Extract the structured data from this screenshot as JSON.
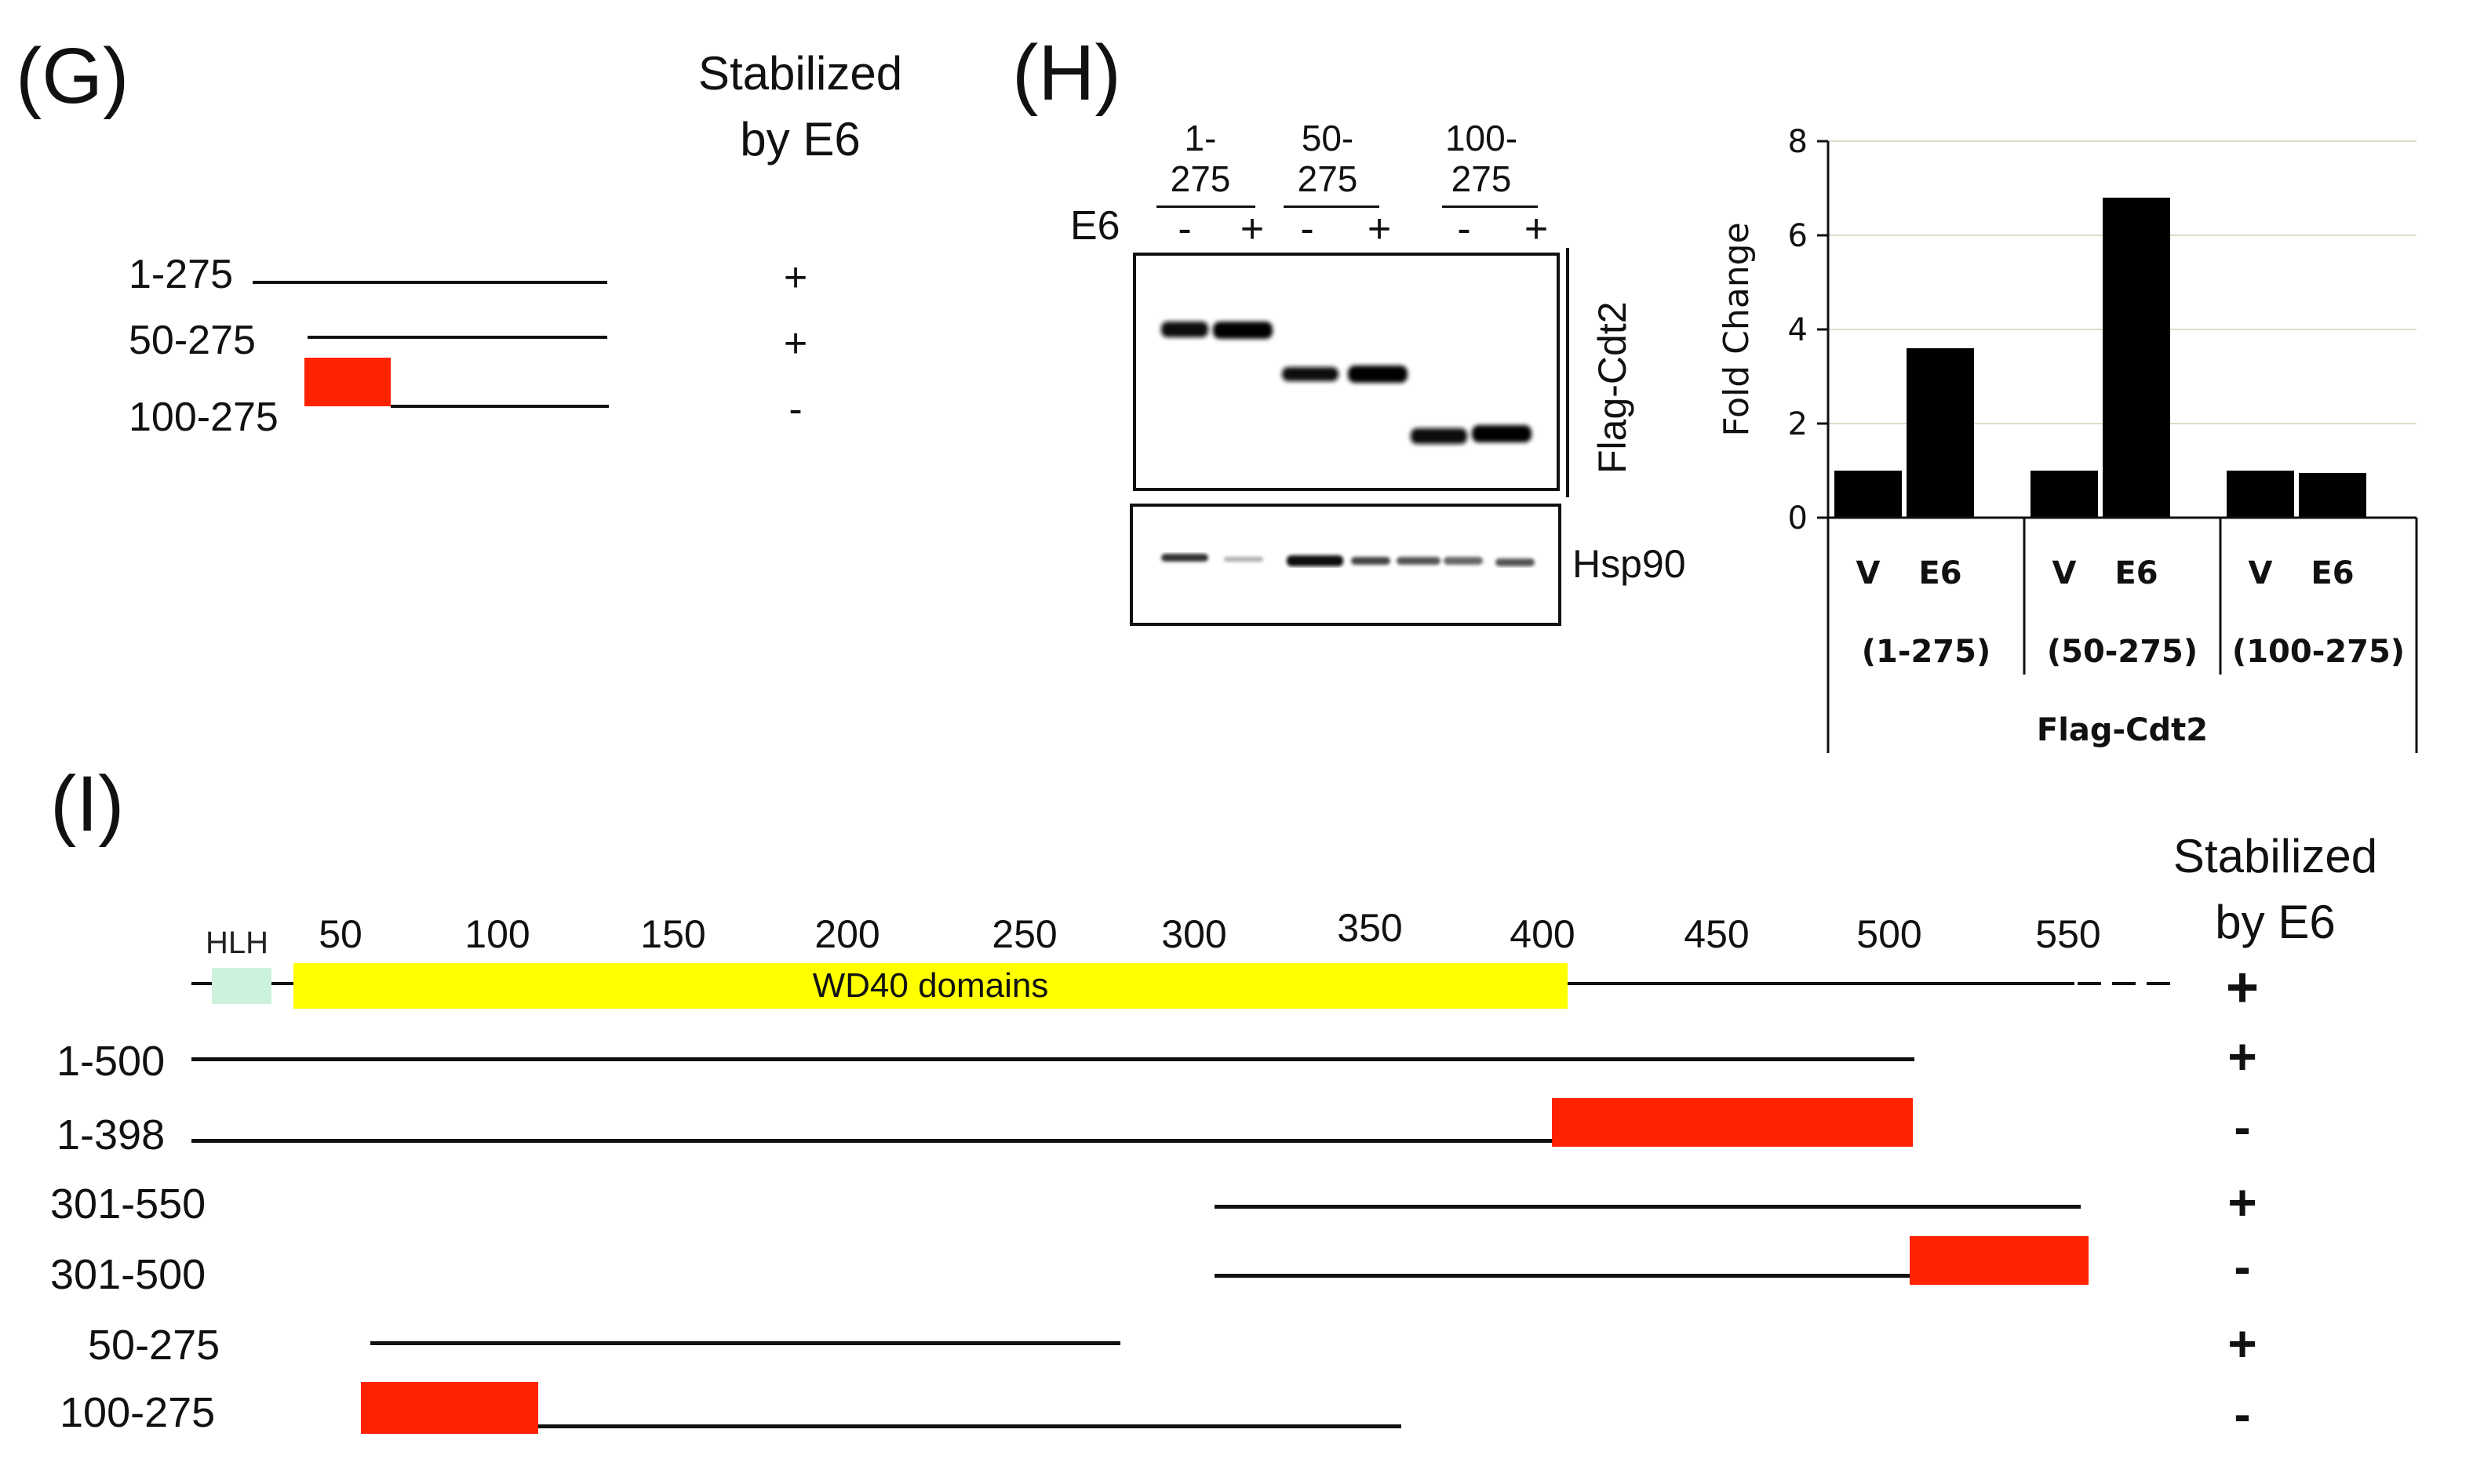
{
  "panel_g": {
    "label": "(G)",
    "header_line1": "Stabilized",
    "header_line2": "by E6",
    "rows": [
      {
        "label": "1-275",
        "sign": "+"
      },
      {
        "label": "50-275",
        "sign": "+"
      },
      {
        "label": "100-275",
        "sign": "-"
      }
    ]
  },
  "panel_h": {
    "label": "(H)",
    "lanes": [
      {
        "line1": "1-",
        "line2": "275"
      },
      {
        "line1": "50-",
        "line2": "275"
      },
      {
        "line1": "100-",
        "line2": "275"
      }
    ],
    "e6_label": "E6",
    "minus": "-",
    "plus": "+",
    "flag_label": "Flag-Cdt2",
    "hsp_label": "Hsp90"
  },
  "chart_data": {
    "type": "bar",
    "categories": [
      "V",
      "E6",
      "V",
      "E6",
      "V",
      "E6"
    ],
    "groups": [
      "(1-275)",
      "(50-275)",
      "(100-275)"
    ],
    "group_caption": "Flag-Cdt2",
    "values": [
      1.0,
      3.6,
      1.0,
      6.8,
      1.0,
      0.95
    ],
    "ylabel": "Fold Change",
    "ylim": [
      0,
      8
    ],
    "yticks": [
      "0",
      "2",
      "4",
      "6",
      "8"
    ],
    "bar_color": "#000000",
    "grid": true
  },
  "panel_i": {
    "label": "(I)",
    "header_line1": "Stabilized",
    "header_line2": "by E6",
    "hlh_label": "HLH",
    "wd40_label": "WD40 domains",
    "ticks": [
      "50",
      "100",
      "150",
      "200",
      "250",
      "300",
      "350",
      "400",
      "450",
      "500",
      "550"
    ],
    "full_sign": "+",
    "rows": [
      {
        "label": "1-500",
        "sign": "+"
      },
      {
        "label": "1-398",
        "sign": "-"
      },
      {
        "label": "301-550",
        "sign": "+"
      },
      {
        "label": "301-500",
        "sign": "-"
      },
      {
        "label": "50-275",
        "sign": "+"
      },
      {
        "label": "100-275",
        "sign": "-"
      }
    ]
  },
  "colors": {
    "deletion": "#ff2200",
    "wd40": "#ffff00",
    "hlh": "#ccf2dc"
  }
}
